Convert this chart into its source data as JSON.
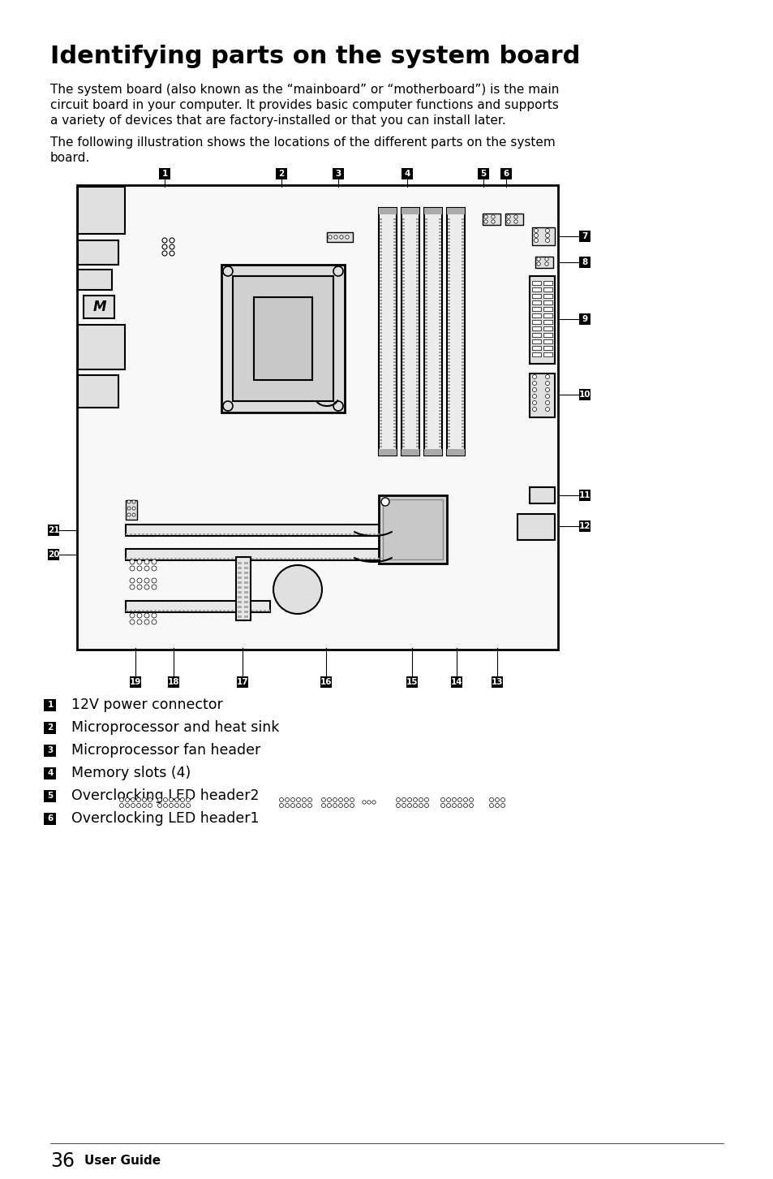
{
  "title": "Identifying parts on the system board",
  "p1_lines": [
    "The system board (also known as the “mainboard” or “motherboard”) is the main",
    "circuit board in your computer. It provides basic computer functions and supports",
    "a variety of devices that are factory-installed or that you can install later."
  ],
  "p2_lines": [
    "The following illustration shows the locations of the different parts on the system",
    "board."
  ],
  "legend": [
    {
      "num": "1",
      "text": "12V power connector"
    },
    {
      "num": "2",
      "text": "Microprocessor and heat sink"
    },
    {
      "num": "3",
      "text": "Microprocessor fan header"
    },
    {
      "num": "4",
      "text": "Memory slots (4)"
    },
    {
      "num": "5",
      "text": "Overclocking LED header2"
    },
    {
      "num": "6",
      "text": "Overclocking LED header1"
    }
  ],
  "footer_num": "36",
  "footer_text": "User Guide",
  "bg_color": "#ffffff",
  "text_color": "#000000"
}
